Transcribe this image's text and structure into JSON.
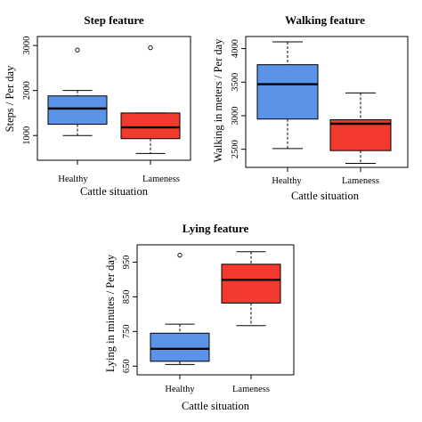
{
  "colors": {
    "healthy": "#5b93e8",
    "lameness": "#f23a2e",
    "median": "#000000",
    "frame": "#000000"
  },
  "chart_data": [
    {
      "type": "boxplot",
      "title": "Step feature",
      "xlabel": "Cattle situation",
      "ylabel": "Steps / Per day",
      "ylim": [
        450,
        3200
      ],
      "yticks": [
        "1000",
        "2000",
        "3000"
      ],
      "ytick_values": [
        1000,
        2000,
        3000
      ],
      "categories": [
        "Healthy",
        "Lameness"
      ],
      "boxes": [
        {
          "name": "Healthy",
          "min": 1000,
          "q1": 1250,
          "median": 1600,
          "q3": 1880,
          "max": 2000,
          "outliers": [
            2900
          ]
        },
        {
          "name": "Lameness",
          "min": 600,
          "q1": 930,
          "median": 1180,
          "q3": 1500,
          "max": 1500,
          "outliers": [
            2950
          ]
        }
      ]
    },
    {
      "type": "boxplot",
      "title": "Walking feature",
      "xlabel": "Cattle situation",
      "ylabel": "Walking in meters / Per day",
      "ylim": [
        2230,
        4180
      ],
      "yticks": [
        "2500",
        "3000",
        "3500",
        "4000"
      ],
      "ytick_values": [
        2500,
        3000,
        3500,
        4000
      ],
      "categories": [
        "Healthy",
        "Lameness"
      ],
      "boxes": [
        {
          "name": "Healthy",
          "min": 2510,
          "q1": 2950,
          "median": 3470,
          "q3": 3760,
          "max": 4100,
          "outliers": []
        },
        {
          "name": "Lameness",
          "min": 2290,
          "q1": 2480,
          "median": 2880,
          "q3": 2940,
          "max": 3340,
          "outliers": []
        }
      ]
    },
    {
      "type": "boxplot",
      "title": "Lying feature",
      "xlabel": "Cattle situation",
      "ylabel": "Lying in minutes / Per day",
      "ylim": [
        625,
        1000
      ],
      "yticks": [
        "650",
        "750",
        "850",
        "950"
      ],
      "ytick_values": [
        650,
        750,
        850,
        950
      ],
      "categories": [
        "Healthy",
        "Lameness"
      ],
      "boxes": [
        {
          "name": "Healthy",
          "min": 655,
          "q1": 664,
          "median": 700,
          "q3": 745,
          "max": 771,
          "outliers": [
            970
          ]
        },
        {
          "name": "Lameness",
          "min": 767,
          "q1": 832,
          "median": 899,
          "q3": 944,
          "max": 980,
          "outliers": []
        }
      ]
    }
  ]
}
